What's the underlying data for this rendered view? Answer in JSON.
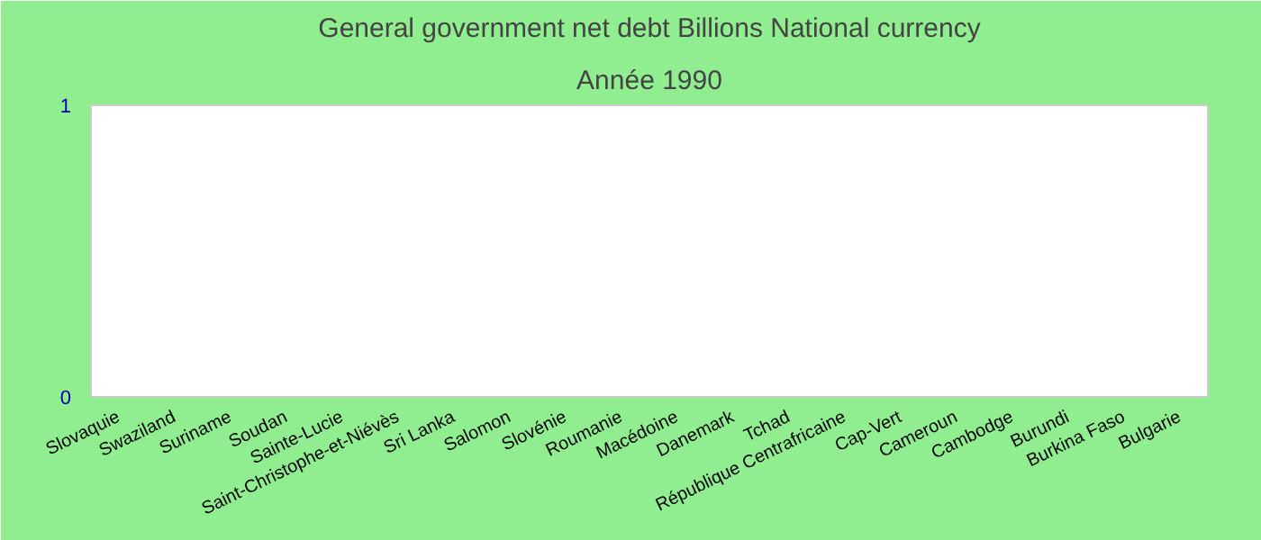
{
  "chart_data": {
    "type": "bar",
    "title": "General government net debt Billions National currency",
    "subtitle": "Année 1990",
    "categories": [
      "Slovaquie",
      "Swaziland",
      "Suriname",
      "Soudan",
      "Sainte-Lucie",
      "Saint-Christophe-et-Niévès",
      "Sri Lanka",
      "Salomon",
      "Slovénie",
      "Roumanie",
      "Macédoine",
      "Danemark",
      "Tchad",
      "République Centrafricaine",
      "Cap-Vert",
      "Cameroun",
      "Cambodge",
      "Burundi",
      "Burkina Faso",
      "Bulgarie"
    ],
    "values": [
      null,
      null,
      null,
      null,
      null,
      null,
      null,
      null,
      null,
      null,
      null,
      null,
      null,
      null,
      null,
      null,
      null,
      null,
      null,
      null
    ],
    "ylim": [
      0,
      1
    ],
    "yticks": [
      0,
      1
    ],
    "grid": false
  }
}
